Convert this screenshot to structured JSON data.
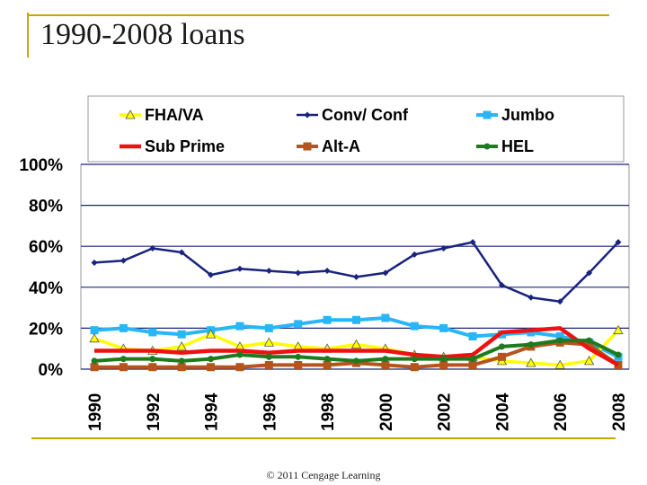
{
  "slide": {
    "title": "1990-2008 loans",
    "copyright": "© 2011 Cengage Learning"
  },
  "chart_data": {
    "type": "line",
    "x": [
      "1990",
      "1991",
      "1992",
      "1993",
      "1994",
      "1995",
      "1996",
      "1997",
      "1998",
      "1999",
      "2000",
      "2001",
      "2002",
      "2003",
      "2004",
      "2005",
      "2006",
      "2007",
      "2008"
    ],
    "x_tick_labels": [
      "1990",
      "1992",
      "1994",
      "1996",
      "1998",
      "2000",
      "2002",
      "2004",
      "2006",
      "2008"
    ],
    "y_tick_labels": [
      "0%",
      "20%",
      "40%",
      "60%",
      "80%",
      "100%"
    ],
    "ylim": [
      0,
      100
    ],
    "grid": true,
    "legend_position": "top",
    "series": [
      {
        "name": "FHA/VA",
        "color": "#ffff00",
        "marker": "triangle",
        "values": [
          15,
          10,
          9,
          11,
          17,
          11,
          13,
          11,
          10,
          12,
          10,
          7,
          6,
          6,
          4,
          3,
          2,
          4,
          19
        ]
      },
      {
        "name": "Conv/ Conf",
        "color": "#1a237e",
        "marker": "diamond",
        "values": [
          52,
          53,
          59,
          57,
          46,
          49,
          48,
          47,
          48,
          45,
          47,
          56,
          59,
          62,
          41,
          35,
          33,
          47,
          62
        ]
      },
      {
        "name": "Jumbo",
        "color": "#29b6f6",
        "marker": "square",
        "values": [
          19,
          20,
          18,
          17,
          19,
          21,
          20,
          22,
          24,
          24,
          25,
          21,
          20,
          16,
          17,
          18,
          16,
          13,
          6
        ]
      },
      {
        "name": "Sub Prime",
        "color": "#ee1111",
        "marker": "none",
        "values": [
          9,
          9,
          9,
          8,
          9,
          9,
          8,
          9,
          9,
          9,
          9,
          7,
          6,
          7,
          18,
          19,
          20,
          10,
          2
        ]
      },
      {
        "name": "Alt-A",
        "color": "#b5541c",
        "marker": "square",
        "values": [
          1,
          1,
          1,
          1,
          1,
          1,
          2,
          2,
          2,
          3,
          2,
          1,
          2,
          2,
          6,
          11,
          13,
          12,
          2
        ]
      },
      {
        "name": "HEL",
        "color": "#1e7a1e",
        "marker": "circle",
        "values": [
          4,
          5,
          5,
          4,
          5,
          7,
          6,
          6,
          5,
          4,
          5,
          5,
          5,
          5,
          11,
          12,
          14,
          14,
          7
        ]
      }
    ]
  }
}
